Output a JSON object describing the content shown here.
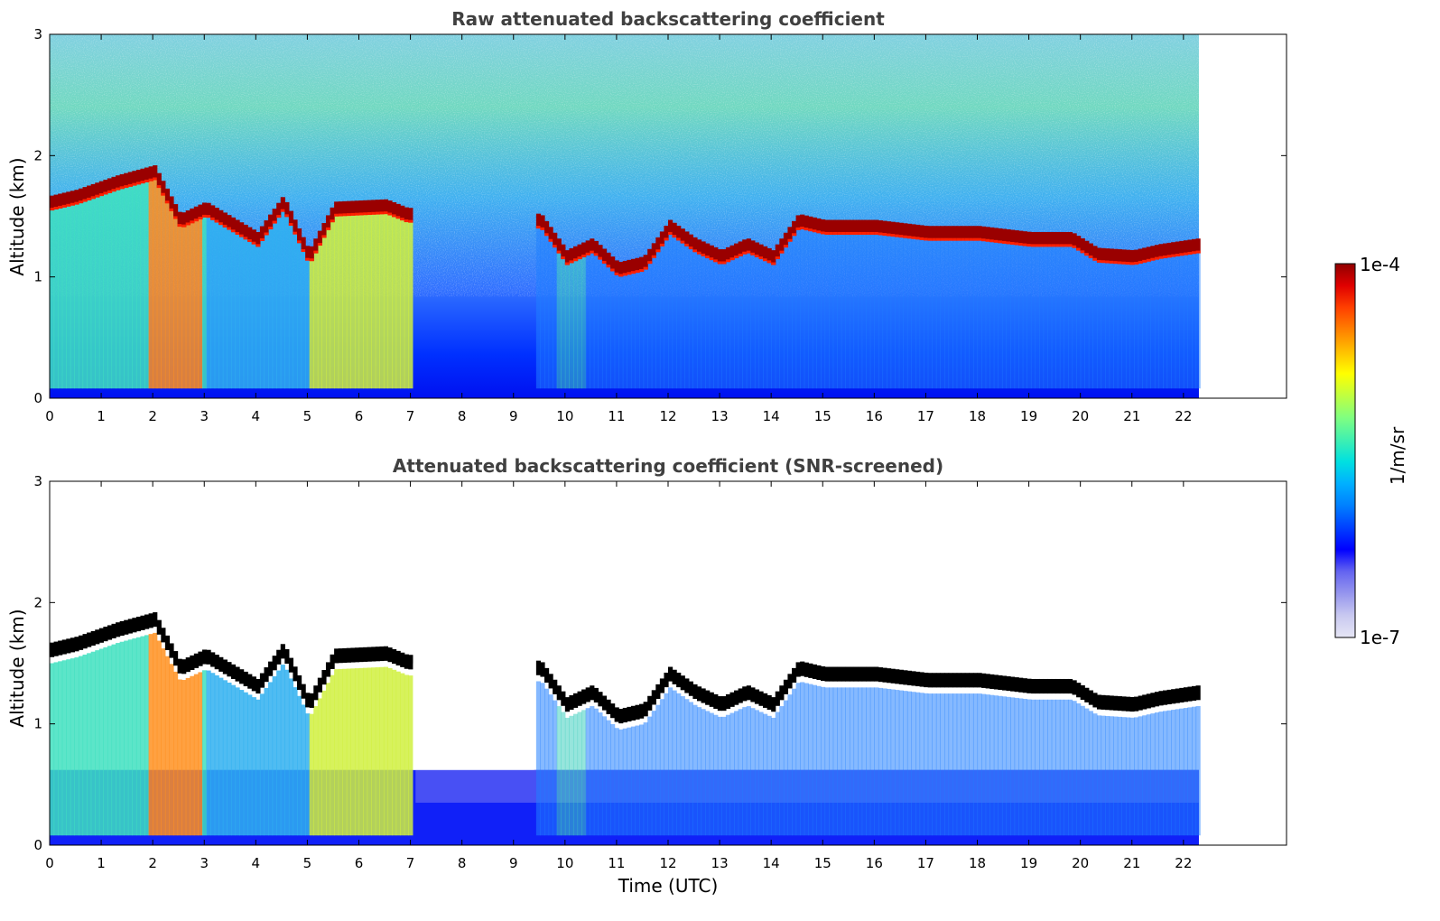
{
  "chart_data": [
    {
      "type": "heatmap",
      "title": "Raw attenuated backscattering coefficient",
      "xlabel": "",
      "ylabel": "Altitude (km)",
      "xlim": [
        0,
        24
      ],
      "ylim": [
        0,
        3
      ],
      "xticks": [
        "0",
        "1",
        "2",
        "3",
        "4",
        "5",
        "6",
        "7",
        "8",
        "9",
        "10",
        "11",
        "12",
        "13",
        "14",
        "15",
        "16",
        "17",
        "18",
        "19",
        "20",
        "21",
        "22"
      ],
      "yticks": [
        "0",
        "1",
        "2",
        "3"
      ],
      "data_extent_time": [
        0,
        22.3
      ],
      "screened": false,
      "cloud_base_km": [
        {
          "t": 0,
          "z": 1.55
        },
        {
          "t": 0.5,
          "z": 1.6
        },
        {
          "t": 1.3,
          "z": 1.72
        },
        {
          "t": 2,
          "z": 1.8
        },
        {
          "t": 2.5,
          "z": 1.4
        },
        {
          "t": 3,
          "z": 1.5
        },
        {
          "t": 4,
          "z": 1.25
        },
        {
          "t": 4.5,
          "z": 1.55
        },
        {
          "t": 5,
          "z": 1.1
        },
        {
          "t": 5.5,
          "z": 1.5
        },
        {
          "t": 6.5,
          "z": 1.52
        },
        {
          "t": 6.9,
          "z": 1.45
        },
        {
          "t": 9.5,
          "z": 1.4
        },
        {
          "t": 10,
          "z": 1.1
        },
        {
          "t": 10.5,
          "z": 1.2
        },
        {
          "t": 11,
          "z": 1.0
        },
        {
          "t": 11.5,
          "z": 1.05
        },
        {
          "t": 12,
          "z": 1.35
        },
        {
          "t": 12.5,
          "z": 1.2
        },
        {
          "t": 13,
          "z": 1.1
        },
        {
          "t": 13.5,
          "z": 1.2
        },
        {
          "t": 14,
          "z": 1.1
        },
        {
          "t": 14.5,
          "z": 1.4
        },
        {
          "t": 15,
          "z": 1.35
        },
        {
          "t": 16,
          "z": 1.35
        },
        {
          "t": 17,
          "z": 1.3
        },
        {
          "t": 18,
          "z": 1.3
        },
        {
          "t": 19,
          "z": 1.25
        },
        {
          "t": 19.8,
          "z": 1.25
        },
        {
          "t": 20.3,
          "z": 1.12
        },
        {
          "t": 21,
          "z": 1.1
        },
        {
          "t": 21.5,
          "z": 1.15
        },
        {
          "t": 22.3,
          "z": 1.2
        }
      ]
    },
    {
      "type": "heatmap",
      "title": "Attenuated backscattering coefficient (SNR-screened)",
      "xlabel": "Time (UTC)",
      "ylabel": "Altitude (km)",
      "xlim": [
        0,
        24
      ],
      "ylim": [
        0,
        3
      ],
      "xticks": [
        "0",
        "1",
        "2",
        "3",
        "4",
        "5",
        "6",
        "7",
        "8",
        "9",
        "10",
        "11",
        "12",
        "13",
        "14",
        "15",
        "16",
        "17",
        "18",
        "19",
        "20",
        "21",
        "22"
      ],
      "yticks": [
        "0",
        "1",
        "2",
        "3"
      ],
      "data_extent_time": [
        0,
        22.3
      ],
      "screened": true
    }
  ],
  "colorbar": {
    "label": "1/m/sr",
    "max_label": "1e-4",
    "min_label": "1e-7",
    "colors": [
      "#e6e6f5",
      "#c8c8f0",
      "#9696ee",
      "#6464f0",
      "#0000ff",
      "#0040ff",
      "#0080ff",
      "#00b0ff",
      "#00e0e0",
      "#40f0b0",
      "#80ff80",
      "#c0ff40",
      "#ffff00",
      "#ffc000",
      "#ff8000",
      "#ff4000",
      "#e00000",
      "#900000"
    ]
  }
}
